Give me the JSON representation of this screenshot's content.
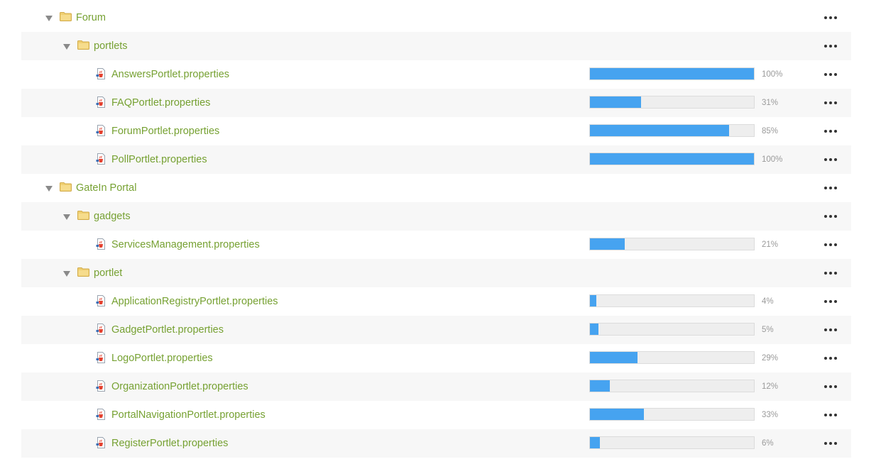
{
  "colors": {
    "link": "#76a132",
    "bar_fill": "#46a3f0",
    "bar_track": "#eeeeee",
    "row_alt": "#f7f7f7",
    "folder": "#f6dc8c"
  },
  "icons": {
    "folder": "folder-icon",
    "file": "java-properties-file-icon",
    "expand": "caret-down-icon",
    "actions": "more-horizontal-icon"
  },
  "tree": [
    {
      "type": "folder",
      "depth": 0,
      "name": "Forum"
    },
    {
      "type": "folder",
      "depth": 1,
      "name": "portlets"
    },
    {
      "type": "file",
      "depth": 2,
      "name": "AnswersPortlet.properties",
      "progress": 100,
      "progress_label": "100%"
    },
    {
      "type": "file",
      "depth": 2,
      "name": "FAQPortlet.properties",
      "progress": 31,
      "progress_label": "31%"
    },
    {
      "type": "file",
      "depth": 2,
      "name": "ForumPortlet.properties",
      "progress": 85,
      "progress_label": "85%"
    },
    {
      "type": "file",
      "depth": 2,
      "name": "PollPortlet.properties",
      "progress": 100,
      "progress_label": "100%"
    },
    {
      "type": "folder",
      "depth": 0,
      "name": "GateIn Portal"
    },
    {
      "type": "folder",
      "depth": 1,
      "name": "gadgets"
    },
    {
      "type": "file",
      "depth": 2,
      "name": "ServicesManagement.properties",
      "progress": 21,
      "progress_label": "21%"
    },
    {
      "type": "folder",
      "depth": 1,
      "name": "portlet"
    },
    {
      "type": "file",
      "depth": 2,
      "name": "ApplicationRegistryPortlet.properties",
      "progress": 4,
      "progress_label": "4%"
    },
    {
      "type": "file",
      "depth": 2,
      "name": "GadgetPortlet.properties",
      "progress": 5,
      "progress_label": "5%"
    },
    {
      "type": "file",
      "depth": 2,
      "name": "LogoPortlet.properties",
      "progress": 29,
      "progress_label": "29%"
    },
    {
      "type": "file",
      "depth": 2,
      "name": "OrganizationPortlet.properties",
      "progress": 12,
      "progress_label": "12%"
    },
    {
      "type": "file",
      "depth": 2,
      "name": "PortalNavigationPortlet.properties",
      "progress": 33,
      "progress_label": "33%"
    },
    {
      "type": "file",
      "depth": 2,
      "name": "RegisterPortlet.properties",
      "progress": 6,
      "progress_label": "6%"
    }
  ]
}
